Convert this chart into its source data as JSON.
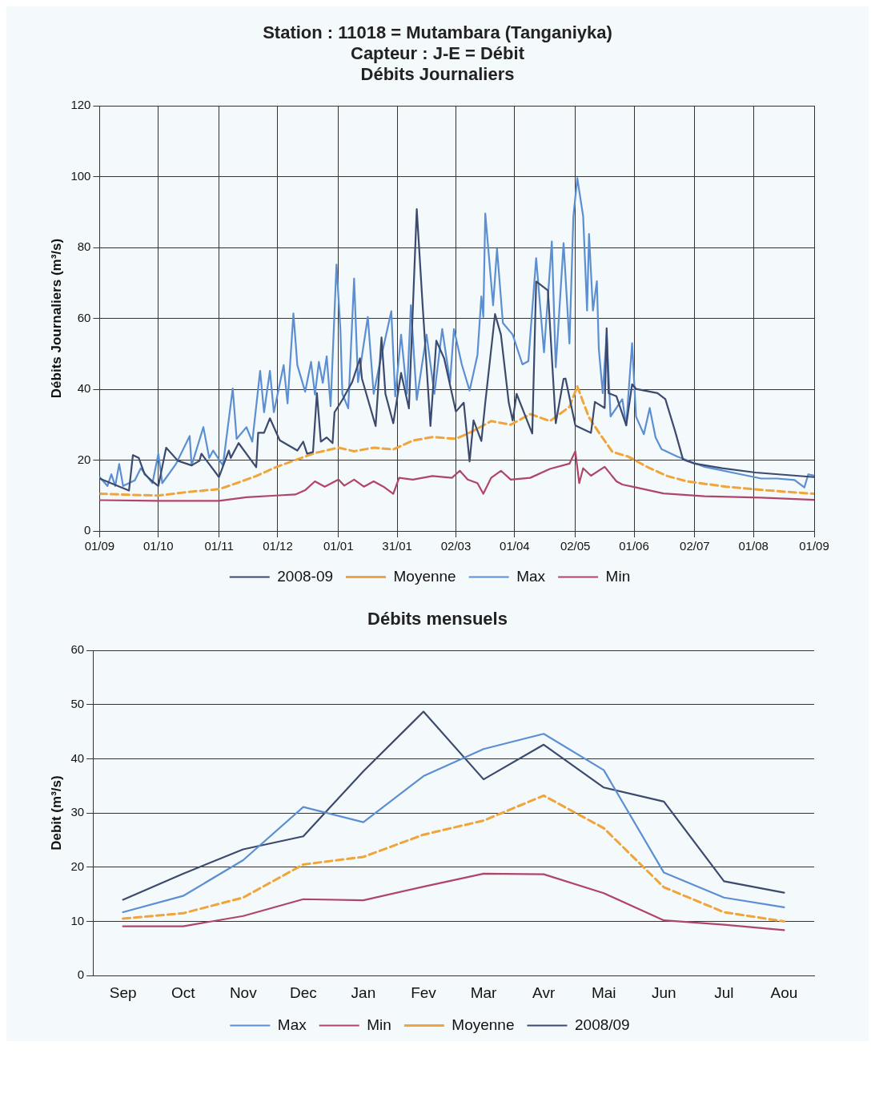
{
  "chart_data": [
    {
      "type": "line",
      "title": "Station : 11018 = Mutambara   (Tanganiyka)",
      "subtitle": "Capteur : J-E = Débit\nDébits Journaliers",
      "ylabel": "Débits Journaliers (m³/s)",
      "xlim": [
        "2008-09-01",
        "2009-09-01"
      ],
      "xticks": [
        {
          "value": "2008-09-01",
          "label": "01/09"
        },
        {
          "value": "2008-10-01",
          "label": "01/10"
        },
        {
          "value": "2008-11-01",
          "label": "01/11"
        },
        {
          "value": "2008-12-01",
          "label": "01/12"
        },
        {
          "value": "2009-01-01",
          "label": "01/01"
        },
        {
          "value": "2009-01-31",
          "label": "31/01"
        },
        {
          "value": "2009-03-02",
          "label": "02/03"
        },
        {
          "value": "2009-04-01",
          "label": "01/04"
        },
        {
          "value": "2009-05-02",
          "label": "02/05"
        },
        {
          "value": "2009-06-01",
          "label": "01/06"
        },
        {
          "value": "2009-07-02",
          "label": "02/07"
        },
        {
          "value": "2009-08-01",
          "label": "01/08"
        },
        {
          "value": "2009-09-01",
          "label": "01/09"
        }
      ],
      "ylim": [
        0,
        120
      ],
      "yticks": [
        0,
        20,
        40,
        60,
        80,
        100,
        120
      ],
      "grid": true,
      "legend": "bottom",
      "marker": "none",
      "series": [
        {
          "name": "2008-09",
          "color": "#3b4a6e",
          "x": [
            "2008-09-01",
            "2008-09-09",
            "2008-09-16",
            "2008-09-18",
            "2008-09-21",
            "2008-09-24",
            "2008-09-28",
            "2008-10-01",
            "2008-10-05",
            "2008-10-11",
            "2008-10-18",
            "2008-10-22",
            "2008-10-23",
            "2008-11-01",
            "2008-11-06",
            "2008-11-07",
            "2008-11-11",
            "2008-11-20",
            "2008-11-21",
            "2008-11-24",
            "2008-11-27",
            "2008-12-02",
            "2008-12-11",
            "2008-12-14",
            "2008-12-16",
            "2008-12-19",
            "2008-12-21",
            "2008-12-23",
            "2008-12-26",
            "2008-12-29",
            "2008-12-30",
            "2009-01-03",
            "2009-01-08",
            "2009-01-12",
            "2009-01-13",
            "2009-01-20",
            "2009-01-23",
            "2009-01-25",
            "2009-01-29",
            "2009-02-02",
            "2009-02-06",
            "2009-02-10",
            "2009-02-13",
            "2009-02-17",
            "2009-02-20",
            "2009-02-24",
            "2009-03-02",
            "2009-03-06",
            "2009-03-09",
            "2009-03-11",
            "2009-03-15",
            "2009-03-17",
            "2009-03-22",
            "2009-03-25",
            "2009-03-29",
            "2009-03-31",
            "2009-04-02",
            "2009-04-10",
            "2009-04-12",
            "2009-04-18",
            "2009-04-22",
            "2009-04-26",
            "2009-04-27",
            "2009-05-02",
            "2009-05-10",
            "2009-05-12",
            "2009-05-17",
            "2009-05-18",
            "2009-05-19",
            "2009-05-23",
            "2009-05-28",
            "2009-05-31",
            "2009-06-02",
            "2009-06-13",
            "2009-06-17",
            "2009-06-22",
            "2009-06-26",
            "2009-07-02",
            "2009-07-16",
            "2009-08-02",
            "2009-09-01"
          ],
          "values": [
            14.8,
            13,
            11.4,
            21.4,
            20.6,
            16,
            14,
            12.7,
            23.5,
            19.8,
            18.5,
            19.8,
            21.8,
            15.2,
            22.7,
            20.6,
            24.8,
            18,
            27.7,
            27.7,
            31.8,
            25.6,
            22.7,
            25.2,
            21.8,
            22.3,
            38.9,
            25.2,
            26.4,
            24.8,
            33.5,
            37,
            42,
            48.7,
            43,
            29.6,
            54.6,
            38.7,
            30.4,
            44.6,
            34.6,
            90.8,
            63.7,
            29.6,
            53.7,
            48.7,
            33.7,
            36.2,
            19.6,
            31.2,
            25.4,
            36.2,
            61.2,
            55.4,
            36.2,
            31.2,
            38.7,
            27.5,
            70.4,
            67.9,
            30.4,
            42.9,
            43,
            29.8,
            27.7,
            36.4,
            34.7,
            57.2,
            38.9,
            38,
            29.8,
            41.4,
            40.1,
            38.9,
            37.2,
            28.1,
            20.2,
            19,
            17.7,
            16.5,
            15.2
          ]
        },
        {
          "name": "Moyenne",
          "color": "#f0a53a",
          "line_style": "dashed",
          "x": [
            "2008-09-01",
            "2008-09-16",
            "2008-10-01",
            "2008-10-16",
            "2008-11-01",
            "2008-11-10",
            "2008-11-20",
            "2008-11-30",
            "2008-12-10",
            "2008-12-20",
            "2009-01-01",
            "2009-01-09",
            "2009-01-19",
            "2009-01-29",
            "2009-02-08",
            "2009-02-18",
            "2009-03-02",
            "2009-03-10",
            "2009-03-20",
            "2009-03-30",
            "2009-04-09",
            "2009-04-19",
            "2009-04-29",
            "2009-05-03",
            "2009-05-09",
            "2009-05-15",
            "2009-05-21",
            "2009-05-29",
            "2009-06-08",
            "2009-06-18",
            "2009-06-28",
            "2009-07-18",
            "2009-08-07",
            "2009-09-01"
          ],
          "values": [
            10.5,
            10.2,
            10,
            11,
            11.8,
            13.5,
            15.5,
            18,
            20,
            22,
            23.5,
            22.5,
            23.5,
            23,
            25.5,
            26.5,
            26,
            28,
            31,
            30,
            33,
            31,
            35,
            40.8,
            32,
            27,
            22.3,
            21,
            18,
            15.5,
            14,
            12.5,
            11.5,
            10.5
          ]
        },
        {
          "name": "Max",
          "color": "#5b8fd2",
          "x": [
            "2008-09-01",
            "2008-09-05",
            "2008-09-07",
            "2008-09-09",
            "2008-09-11",
            "2008-09-13",
            "2008-09-19",
            "2008-09-22",
            "2008-09-28",
            "2008-10-01",
            "2008-10-03",
            "2008-10-10",
            "2008-10-17",
            "2008-10-18",
            "2008-10-24",
            "2008-10-27",
            "2008-10-29",
            "2008-11-03",
            "2008-11-08",
            "2008-11-10",
            "2008-11-15",
            "2008-11-18",
            "2008-11-22",
            "2008-11-24",
            "2008-11-27",
            "2008-11-29",
            "2008-12-04",
            "2008-12-06",
            "2008-12-09",
            "2008-12-11",
            "2008-12-15",
            "2008-12-18",
            "2008-12-20",
            "2008-12-22",
            "2008-12-24",
            "2008-12-26",
            "2008-12-28",
            "2008-12-31",
            "2009-01-02",
            "2009-01-03",
            "2009-01-06",
            "2009-01-09",
            "2009-01-11",
            "2009-01-16",
            "2009-01-19",
            "2009-01-22",
            "2009-01-28",
            "2009-01-30",
            "2009-02-02",
            "2009-02-05",
            "2009-02-07",
            "2009-02-10",
            "2009-02-15",
            "2009-02-19",
            "2009-02-23",
            "2009-02-27",
            "2009-03-01",
            "2009-03-05",
            "2009-03-09",
            "2009-03-13",
            "2009-03-15",
            "2009-03-16",
            "2009-03-17",
            "2009-03-21",
            "2009-03-23",
            "2009-03-26",
            "2009-03-31",
            "2009-04-05",
            "2009-04-08",
            "2009-04-12",
            "2009-04-16",
            "2009-04-20",
            "2009-04-22",
            "2009-04-26",
            "2009-04-29",
            "2009-05-01",
            "2009-05-03",
            "2009-05-06",
            "2009-05-08",
            "2009-05-09",
            "2009-05-11",
            "2009-05-13",
            "2009-05-14",
            "2009-05-16",
            "2009-05-18",
            "2009-05-20",
            "2009-05-26",
            "2009-05-28",
            "2009-05-31",
            "2009-06-02",
            "2009-06-06",
            "2009-06-09",
            "2009-06-12",
            "2009-06-15",
            "2009-06-23",
            "2009-07-07",
            "2009-07-21",
            "2009-08-05",
            "2009-08-13",
            "2009-08-22",
            "2009-08-27",
            "2009-08-29",
            "2009-09-01"
          ],
          "values": [
            15.2,
            12.7,
            16,
            12.7,
            18.9,
            12.7,
            14.3,
            17.7,
            13.5,
            21.8,
            13.5,
            18.9,
            26.8,
            18.5,
            29.3,
            20.6,
            22.7,
            18.5,
            40.2,
            26,
            29.3,
            25.2,
            45.2,
            33.5,
            45.2,
            33.5,
            46.8,
            36,
            61.4,
            46.8,
            39.3,
            47.7,
            38.5,
            47.7,
            41.8,
            49.3,
            35.2,
            75.2,
            56.8,
            38.7,
            34.6,
            71.2,
            42,
            60.4,
            38.7,
            47,
            62,
            38,
            55.4,
            38.7,
            63.7,
            37,
            55.4,
            38.7,
            57,
            42,
            57,
            47,
            39.6,
            49.6,
            66.2,
            60.4,
            89.6,
            63.7,
            79.6,
            58.7,
            55.4,
            47,
            47.9,
            77,
            50.4,
            81.7,
            46.2,
            81.2,
            52.9,
            88.7,
            99.6,
            88.8,
            62.2,
            83.8,
            62.2,
            70.5,
            51.4,
            38.9,
            55.5,
            32.3,
            37.2,
            29.8,
            53,
            32.3,
            27.3,
            34.7,
            26.4,
            23.1,
            21,
            18.1,
            16.5,
            14.8,
            14.8,
            14.4,
            12.3,
            16,
            15.6
          ]
        },
        {
          "name": "Min",
          "color": "#b0456a",
          "x": [
            "2008-09-01",
            "2008-10-01",
            "2008-11-01",
            "2008-11-15",
            "2008-11-30",
            "2008-12-10",
            "2008-12-15",
            "2008-12-20",
            "2008-12-25",
            "2009-01-01",
            "2009-01-04",
            "2009-01-09",
            "2009-01-14",
            "2009-01-19",
            "2009-01-24",
            "2009-01-29",
            "2009-02-01",
            "2009-02-08",
            "2009-02-18",
            "2009-02-28",
            "2009-03-04",
            "2009-03-08",
            "2009-03-13",
            "2009-03-16",
            "2009-03-20",
            "2009-03-25",
            "2009-03-30",
            "2009-04-09",
            "2009-04-19",
            "2009-04-29",
            "2009-05-02",
            "2009-05-04",
            "2009-05-06",
            "2009-05-10",
            "2009-05-17",
            "2009-05-23",
            "2009-05-26",
            "2009-06-02",
            "2009-06-16",
            "2009-07-07",
            "2009-08-05",
            "2009-09-01"
          ],
          "values": [
            8.7,
            8.5,
            8.5,
            9.5,
            10,
            10.3,
            11.5,
            14,
            12.5,
            14.5,
            12.8,
            14.5,
            12.5,
            14,
            12.5,
            10.5,
            15,
            14.5,
            15.5,
            15,
            17,
            14.5,
            13.5,
            10.5,
            15,
            17,
            14.5,
            15,
            17.5,
            19,
            22.5,
            13.5,
            17.7,
            15.6,
            18.1,
            14,
            13.1,
            12.3,
            10.6,
            9.8,
            9.4,
            8.8
          ]
        }
      ]
    },
    {
      "type": "line",
      "title": "Débits mensuels",
      "ylabel": "Debit (m³/s)",
      "categories": [
        "Sep",
        "Oct",
        "Nov",
        "Dec",
        "Jan",
        "Fev",
        "Mar",
        "Avr",
        "Mai",
        "Jun",
        "Jul",
        "Aou"
      ],
      "ylim": [
        0,
        60
      ],
      "yticks": [
        0,
        10,
        20,
        30,
        40,
        50,
        60
      ],
      "grid": "y",
      "legend": "bottom",
      "marker": "none",
      "series": [
        {
          "name": "Max",
          "color": "#5b8fd2",
          "values": [
            11.7,
            14.7,
            21.3,
            31.1,
            28.3,
            36.8,
            41.8,
            44.6,
            37.9,
            19,
            14.4,
            12.6
          ]
        },
        {
          "name": "Min",
          "color": "#b0456a",
          "values": [
            9.1,
            9.1,
            11,
            14.1,
            13.9,
            16.4,
            18.8,
            18.7,
            15.2,
            10.2,
            9.4,
            8.4
          ]
        },
        {
          "name": "Moyenne",
          "color": "#f0a53a",
          "line_style": "dashed",
          "values": [
            10.5,
            11.5,
            14.4,
            20.5,
            21.9,
            26,
            28.6,
            33.2,
            27.2,
            16.3,
            11.7,
            10
          ]
        },
        {
          "name": "2008/09",
          "color": "#3b4a6e",
          "values": [
            14,
            18.8,
            23.3,
            25.7,
            37.7,
            48.7,
            36.2,
            42.6,
            34.7,
            32.1,
            17.4,
            15.3
          ]
        }
      ]
    }
  ]
}
